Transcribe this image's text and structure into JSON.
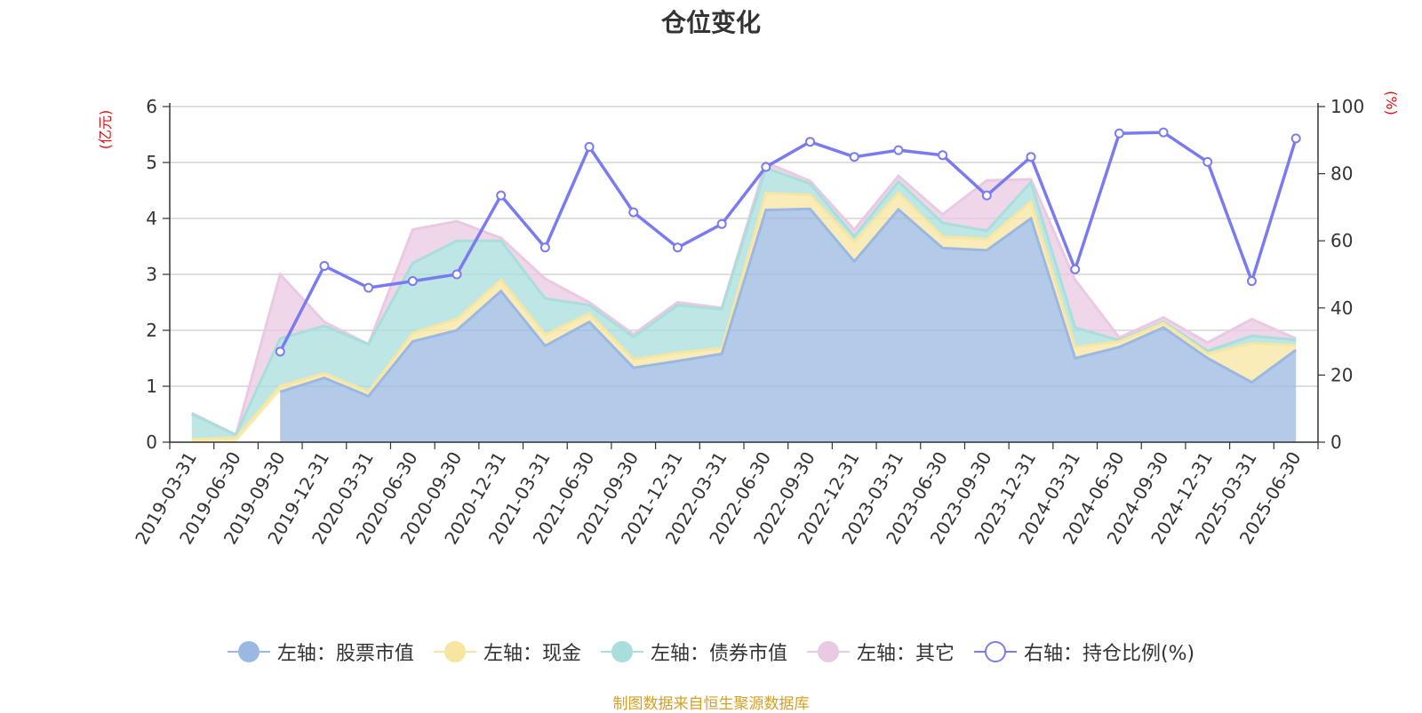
{
  "chart_data": {
    "type": "area",
    "title": "仓位变化",
    "left_unit": "(亿元)",
    "right_unit": "(%)",
    "left_ylim": [
      0,
      6
    ],
    "left_ticks": [
      "0",
      "1",
      "2",
      "3",
      "4",
      "5",
      "6"
    ],
    "right_ylim": [
      0,
      100
    ],
    "right_ticks": [
      "0",
      "20",
      "40",
      "60",
      "80",
      "100"
    ],
    "categories": [
      "2019-03-31",
      "2019-06-30",
      "2019-09-30",
      "2019-12-31",
      "2020-03-31",
      "2020-06-30",
      "2020-09-30",
      "2020-12-31",
      "2021-03-31",
      "2021-06-30",
      "2021-09-30",
      "2021-12-31",
      "2022-03-31",
      "2022-06-30",
      "2022-09-30",
      "2022-12-31",
      "2023-03-31",
      "2023-06-30",
      "2023-09-30",
      "2023-12-31",
      "2024-03-31",
      "2024-06-30",
      "2024-09-30",
      "2024-12-31",
      "2025-03-31",
      "2025-06-30"
    ],
    "series": [
      {
        "name": "左轴：股票市值",
        "axis": "left",
        "color": "#9bb8e2",
        "values": [
          0,
          0,
          0.9,
          1.15,
          0.82,
          1.8,
          2.0,
          2.7,
          1.72,
          2.15,
          1.33,
          1.45,
          1.58,
          4.15,
          4.17,
          3.23,
          4.16,
          3.47,
          3.43,
          4.0,
          1.5,
          1.7,
          2.05,
          1.5,
          1.07,
          1.65
        ]
      },
      {
        "name": "左轴：现金",
        "axis": "left",
        "color": "#f7e6a2",
        "values": [
          0.05,
          0.08,
          0.1,
          0.08,
          0.08,
          0.15,
          0.2,
          0.2,
          0.2,
          0.15,
          0.15,
          0.15,
          0.1,
          0.3,
          0.25,
          0.35,
          0.3,
          0.2,
          0.2,
          0.3,
          0.2,
          0.1,
          0.08,
          0.08,
          0.7,
          0.08
        ]
      },
      {
        "name": "左轴：债券市值",
        "axis": "left",
        "color": "#a8dedb",
        "values": [
          0.45,
          0.05,
          0.85,
          0.85,
          0.85,
          1.25,
          1.4,
          0.7,
          0.65,
          0.15,
          0.4,
          0.85,
          0.7,
          0.45,
          0.2,
          0.1,
          0.2,
          0.25,
          0.15,
          0.35,
          0.35,
          0.02,
          0.02,
          0.05,
          0.13,
          0.1
        ]
      },
      {
        "name": "左轴：其它",
        "axis": "left",
        "color": "#eac9e2",
        "values": [
          0.02,
          0.0,
          1.15,
          0.07,
          0.0,
          0.6,
          0.35,
          0.05,
          0.35,
          0.05,
          0.05,
          0.05,
          0.02,
          0.1,
          0.05,
          0.12,
          0.1,
          0.15,
          0.9,
          0.05,
          0.85,
          0.05,
          0.08,
          0.15,
          0.3,
          0.02
        ]
      },
      {
        "name": "右轴：持仓比例(%)",
        "axis": "right",
        "color": "#7b7bf0",
        "values": [
          null,
          null,
          27,
          52.5,
          46,
          48,
          50,
          73.5,
          58,
          88,
          68.5,
          58,
          65,
          82,
          89.5,
          85,
          87,
          85.5,
          73.5,
          85,
          51.5,
          92,
          92.3,
          83.5,
          48,
          90.5
        ]
      }
    ],
    "legend_position": "bottom",
    "grid": true
  },
  "footer": "制图数据来自恒生聚源数据库"
}
